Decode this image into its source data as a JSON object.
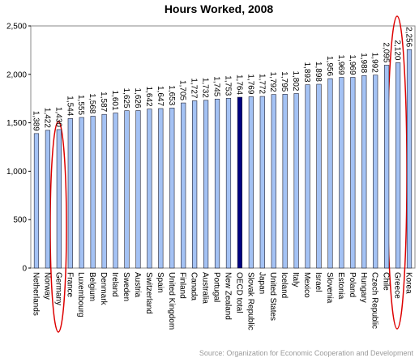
{
  "chart_data": {
    "type": "bar",
    "title": "Hours Worked, 2008",
    "categories": [
      "Netherlands",
      "Norway",
      "Germany",
      "France",
      "Luxembourg",
      "Belgium",
      "Denmark",
      "Ireland",
      "Sweden",
      "Austria",
      "Switzerland",
      "Spain",
      "United Kingdom",
      "Finland",
      "Canada",
      "Australia",
      "Portugal",
      "New Zealand",
      "OECD total",
      "Slovak Republic",
      "Japan",
      "United States",
      "Iceland",
      "Italy",
      "Mexico",
      "Israel",
      "Slovenia",
      "Estonia",
      "Poland",
      "Hungary",
      "Czech Republic",
      "Chile",
      "Greece",
      "Korea"
    ],
    "values": [
      1389,
      1422,
      1430,
      1544,
      1555,
      1568,
      1587,
      1601,
      1625,
      1626,
      1642,
      1647,
      1653,
      1705,
      1727,
      1732,
      1745,
      1753,
      1764,
      1769,
      1772,
      1792,
      1795,
      1802,
      1893,
      1898,
      1956,
      1969,
      1969,
      1988,
      1992,
      2095,
      2120,
      2256
    ],
    "value_labels": [
      "1,389",
      "1,422",
      "1,430",
      "1,544",
      "1,555",
      "1,568",
      "1,587",
      "1,601",
      "1,625",
      "1,626",
      "1,642",
      "1,647",
      "1,653",
      "1,705",
      "1,727",
      "1,732",
      "1,745",
      "1,753",
      "1,764",
      "1,769",
      "1,772",
      "1,792",
      "1,795",
      "1,802",
      "1,893",
      "1,898",
      "1,956",
      "1,969",
      "1,969",
      "1,988",
      "1,992",
      "2,095",
      "2,120",
      "2,256"
    ],
    "color": "#a4c2f4",
    "highlight_index": 18,
    "highlight_color": "#000080",
    "ylim": [
      0,
      2500
    ],
    "yticks": [
      0,
      500,
      {
        "value": 1000,
        "label": "1,000"
      },
      {
        "value": 1500,
        "label": "1,500"
      },
      {
        "value": 2000,
        "label": "2,000"
      },
      {
        "value": 2500,
        "label": "2,500"
      }
    ],
    "grid": false,
    "source": "Source: Organization for Economic Cooperation and Development"
  }
}
